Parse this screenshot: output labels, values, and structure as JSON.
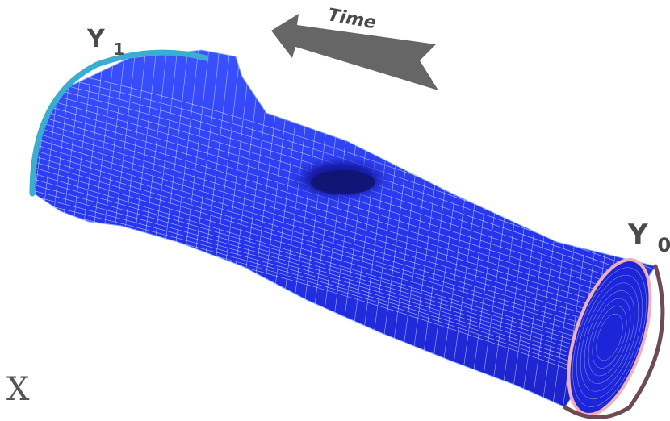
{
  "labels": {
    "time": "Time",
    "y1_main": "Y",
    "y1_sub": "1",
    "y0_main": "Y",
    "y0_sub": "0",
    "x": "X"
  },
  "colors": {
    "surface": "#2a3cf0",
    "mesh": "#dfe6ff",
    "rim_y1": "#3aaed0",
    "rim_y0_outer": "#6e4a55",
    "rim_y0_inner": "#f0b0b8",
    "arrow": "#666666",
    "label": "#4a4a4a"
  },
  "icons": {
    "arrow": "time-direction-arrow-icon",
    "surface": "manifold-tube-surface"
  }
}
